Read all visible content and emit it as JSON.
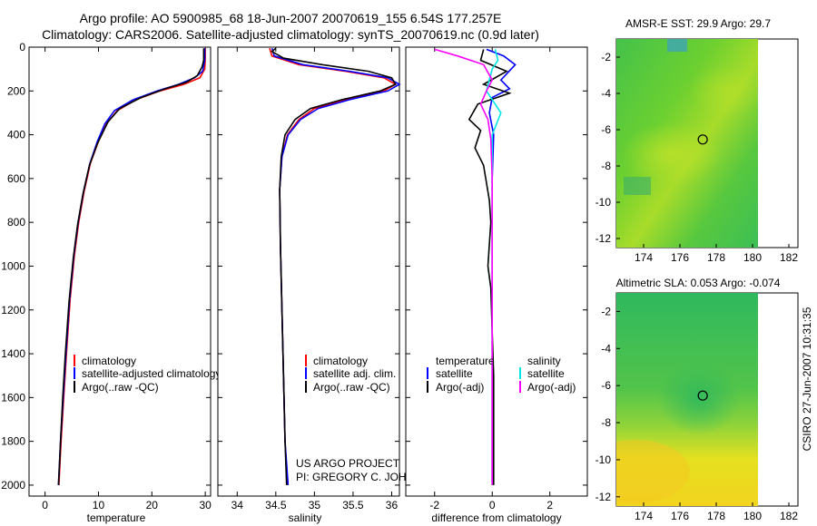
{
  "header": {
    "title_line1": "Argo profile: AO 5900985_68 18-Jun-2007 20070619_155 6.54S 177.257E",
    "title_line2": "Climatology: CARS2006. Satellite-adjusted climatology: synTS_20070619.nc (0.9d later)"
  },
  "colors": {
    "climatology": "#ff0000",
    "satellite": "#0000ff",
    "argo": "#000000",
    "satellite_salinity": "#00e5e5",
    "argo_adj_salinity": "#ff00ff"
  },
  "chart_data": [
    {
      "type": "line",
      "id": "temperature",
      "xlabel": "temperature",
      "ylabel": "",
      "xlim": [
        -3,
        31
      ],
      "ylim": [
        0,
        2050
      ],
      "y_inverted": true,
      "xticks": [
        0,
        10,
        20,
        30
      ],
      "yticks": [
        0,
        200,
        400,
        600,
        800,
        1000,
        1200,
        1400,
        1600,
        1800,
        2000
      ],
      "legend": [
        "climatology",
        "satellite-adjusted climatology",
        "Argo(..raw -QC)"
      ],
      "series": [
        {
          "name": "climatology",
          "color": "#ff0000",
          "points": [
            [
              30.0,
              5
            ],
            [
              30.0,
              60
            ],
            [
              29.9,
              100
            ],
            [
              29.0,
              140
            ],
            [
              26.0,
              170
            ],
            [
              21.5,
              200
            ],
            [
              17.0,
              240
            ],
            [
              13.5,
              290
            ],
            [
              11.5,
              350
            ],
            [
              10.0,
              430
            ],
            [
              8.5,
              530
            ],
            [
              7.3,
              660
            ],
            [
              6.3,
              800
            ],
            [
              5.5,
              950
            ],
            [
              4.7,
              1150
            ],
            [
              4.0,
              1400
            ],
            [
              3.5,
              1600
            ],
            [
              3.0,
              1800
            ],
            [
              2.6,
              2000
            ]
          ]
        },
        {
          "name": "satellite-adjusted climatology",
          "color": "#0000ff",
          "points": [
            [
              29.9,
              5
            ],
            [
              29.9,
              60
            ],
            [
              29.5,
              110
            ],
            [
              28.0,
              140
            ],
            [
              25.0,
              170
            ],
            [
              21.0,
              200
            ],
            [
              16.5,
              240
            ],
            [
              13.0,
              290
            ],
            [
              11.2,
              350
            ],
            [
              9.8,
              430
            ],
            [
              8.4,
              530
            ],
            [
              7.2,
              660
            ],
            [
              6.2,
              800
            ],
            [
              5.4,
              950
            ],
            [
              4.6,
              1150
            ],
            [
              3.9,
              1400
            ],
            [
              3.4,
              1600
            ],
            [
              2.9,
              1800
            ],
            [
              2.5,
              2000
            ]
          ]
        },
        {
          "name": "Argo(..raw -QC)",
          "color": "#000000",
          "points": [
            [
              29.7,
              5
            ],
            [
              29.7,
              60
            ],
            [
              29.4,
              90
            ],
            [
              28.5,
              130
            ],
            [
              26.5,
              160
            ],
            [
              22.5,
              190
            ],
            [
              18.0,
              230
            ],
            [
              14.0,
              280
            ],
            [
              11.8,
              340
            ],
            [
              9.8,
              440
            ],
            [
              8.3,
              540
            ],
            [
              7.1,
              670
            ],
            [
              6.1,
              810
            ],
            [
              5.3,
              960
            ],
            [
              4.5,
              1160
            ],
            [
              3.8,
              1400
            ],
            [
              3.3,
              1600
            ],
            [
              2.9,
              1800
            ],
            [
              2.5,
              2000
            ]
          ]
        }
      ]
    },
    {
      "type": "line",
      "id": "salinity",
      "xlabel": "salinity",
      "ylabel": "",
      "xlim": [
        33.75,
        36.1
      ],
      "ylim": [
        0,
        2050
      ],
      "y_inverted": true,
      "xticks": [
        34,
        34.5,
        35,
        35.5,
        36
      ],
      "yticks": [
        0,
        200,
        400,
        600,
        800,
        1000,
        1200,
        1400,
        1600,
        1800,
        2000
      ],
      "legend": [
        "climatology",
        "satellite adj. clim.",
        "Argo(..raw -QC)"
      ],
      "series": [
        {
          "name": "climatology",
          "color": "#ff0000",
          "points": [
            [
              34.42,
              5
            ],
            [
              34.45,
              40
            ],
            [
              34.8,
              80
            ],
            [
              35.4,
              110
            ],
            [
              35.9,
              140
            ],
            [
              36.05,
              170
            ],
            [
              35.9,
              200
            ],
            [
              35.4,
              240
            ],
            [
              35.0,
              280
            ],
            [
              34.8,
              330
            ],
            [
              34.65,
              400
            ],
            [
              34.58,
              500
            ],
            [
              34.55,
              650
            ],
            [
              34.56,
              900
            ],
            [
              34.58,
              1200
            ],
            [
              34.6,
              1500
            ],
            [
              34.62,
              1800
            ],
            [
              34.65,
              2000
            ]
          ]
        },
        {
          "name": "satellite adj. clim.",
          "color": "#0000ff",
          "points": [
            [
              34.45,
              5
            ],
            [
              34.48,
              40
            ],
            [
              34.85,
              80
            ],
            [
              35.45,
              110
            ],
            [
              35.95,
              140
            ],
            [
              36.1,
              170
            ],
            [
              35.95,
              200
            ],
            [
              35.45,
              240
            ],
            [
              35.05,
              280
            ],
            [
              34.82,
              330
            ],
            [
              34.66,
              400
            ],
            [
              34.58,
              500
            ],
            [
              34.55,
              650
            ],
            [
              34.56,
              900
            ],
            [
              34.58,
              1200
            ],
            [
              34.6,
              1500
            ],
            [
              34.62,
              1800
            ],
            [
              34.66,
              2000
            ]
          ]
        },
        {
          "name": "Argo(..raw -QC)",
          "color": "#000000",
          "points": [
            [
              34.5,
              5
            ],
            [
              34.45,
              20
            ],
            [
              34.6,
              50
            ],
            [
              35.1,
              80
            ],
            [
              35.7,
              110
            ],
            [
              36.0,
              140
            ],
            [
              36.05,
              170
            ],
            [
              35.85,
              200
            ],
            [
              35.35,
              240
            ],
            [
              34.95,
              280
            ],
            [
              34.75,
              330
            ],
            [
              34.62,
              400
            ],
            [
              34.57,
              500
            ],
            [
              34.55,
              650
            ],
            [
              34.56,
              900
            ],
            [
              34.58,
              1200
            ],
            [
              34.6,
              1500
            ],
            [
              34.62,
              1800
            ],
            [
              34.64,
              2000
            ]
          ]
        }
      ]
    },
    {
      "type": "line",
      "id": "difference",
      "xlabel": "difference from climatology",
      "ylabel": "",
      "xlim": [
        -3,
        3.3
      ],
      "ylim": [
        0,
        2050
      ],
      "y_inverted": true,
      "xticks": [
        -2,
        0,
        2
      ],
      "yticks": [
        0,
        200,
        400,
        600,
        800,
        1000,
        1200,
        1400,
        1600,
        1800,
        2000
      ],
      "legend": [
        "temperature",
        "satellite",
        "Argo(-adj)",
        "salinity",
        "satellite",
        "Argo(-adj)"
      ],
      "series": [
        {
          "name": "temperature satellite",
          "color": "#0000ff",
          "points": [
            [
              -0.2,
              10
            ],
            [
              0.4,
              40
            ],
            [
              0.8,
              80
            ],
            [
              0.3,
              150
            ],
            [
              0.6,
              190
            ],
            [
              0.0,
              230
            ],
            [
              -0.1,
              300
            ],
            [
              0.05,
              400
            ],
            [
              0.0,
              600
            ],
            [
              0.0,
              800
            ],
            [
              0.0,
              1200
            ],
            [
              0.0,
              1600
            ],
            [
              0.0,
              2000
            ]
          ]
        },
        {
          "name": "temperature Argo(-adj)",
          "color": "#000000",
          "points": [
            [
              -0.3,
              10
            ],
            [
              -0.4,
              60
            ],
            [
              0.5,
              110
            ],
            [
              -0.3,
              170
            ],
            [
              0.6,
              210
            ],
            [
              -0.5,
              260
            ],
            [
              -0.8,
              330
            ],
            [
              -0.4,
              380
            ],
            [
              -0.6,
              460
            ],
            [
              -0.3,
              540
            ],
            [
              -0.2,
              620
            ],
            [
              -0.1,
              700
            ],
            [
              -0.05,
              800
            ],
            [
              -0.1,
              900
            ],
            [
              -0.15,
              1000
            ],
            [
              -0.05,
              1100
            ],
            [
              0.0,
              1300
            ],
            [
              0.05,
              1500
            ],
            [
              0.05,
              1700
            ],
            [
              0.05,
              2000
            ]
          ]
        },
        {
          "name": "salinity satellite",
          "color": "#00e5e5",
          "points": [
            [
              0.1,
              10
            ],
            [
              0.2,
              60
            ],
            [
              0.0,
              100
            ],
            [
              -0.2,
              200
            ],
            [
              0.3,
              300
            ],
            [
              0.0,
              400
            ],
            [
              0.0,
              700
            ],
            [
              0.0,
              1000
            ],
            [
              0.0,
              1400
            ],
            [
              0.0,
              2000
            ]
          ]
        },
        {
          "name": "salinity Argo(-adj)",
          "color": "#ff00ff",
          "points": [
            [
              -2.0,
              10
            ],
            [
              -1.2,
              40
            ],
            [
              -0.3,
              80
            ],
            [
              0.0,
              150
            ],
            [
              -0.2,
              200
            ],
            [
              -0.4,
              260
            ],
            [
              -0.15,
              330
            ],
            [
              -0.05,
              420
            ],
            [
              0.0,
              600
            ],
            [
              0.0,
              900
            ],
            [
              0.0,
              1300
            ],
            [
              0.0,
              1700
            ],
            [
              0.0,
              2000
            ]
          ]
        }
      ]
    },
    {
      "type": "heatmap",
      "id": "sst_map",
      "title": "AMSR-E SST: 29.9 Argo: 29.7",
      "xlim": [
        172.5,
        182.5
      ],
      "ylim": [
        -12.5,
        -1
      ],
      "xticks": [
        174,
        176,
        178,
        180,
        182
      ],
      "yticks": [
        -2,
        -4,
        -6,
        -8,
        -10,
        -12
      ],
      "data_extent_x": [
        172.5,
        180
      ],
      "argo_marker": [
        177.257,
        -6.54
      ]
    },
    {
      "type": "heatmap",
      "id": "sla_map",
      "title": "Altimetric SLA: 0.053 Argo: -0.074",
      "xlim": [
        172.5,
        182.5
      ],
      "ylim": [
        -12.5,
        -1
      ],
      "xticks": [
        174,
        176,
        178,
        180,
        182
      ],
      "yticks": [
        -2,
        -4,
        -6,
        -8,
        -10,
        -12
      ],
      "data_extent_x": [
        172.5,
        180
      ],
      "argo_marker": [
        177.257,
        -6.54
      ]
    }
  ],
  "annotations": {
    "project_line1": "US ARGO PROJECT",
    "project_line2": "PI: GREGORY C. JOHNSON",
    "stamp": "CSIRO 27-Jun-2007 10:31:35"
  }
}
